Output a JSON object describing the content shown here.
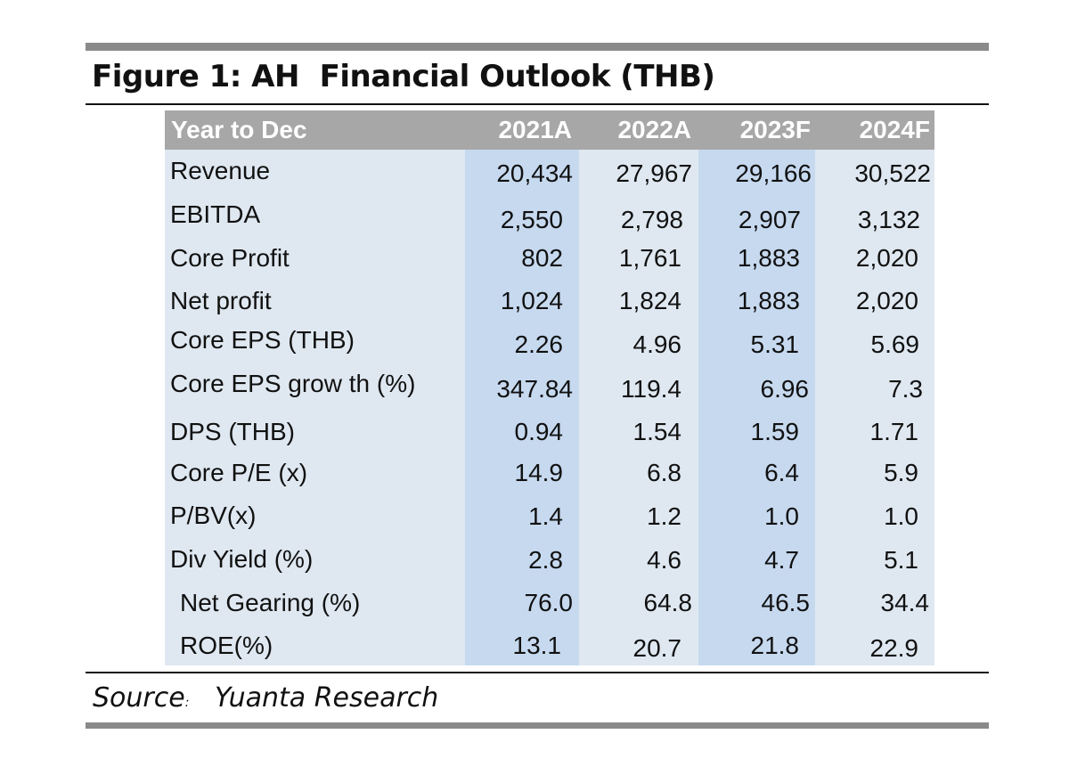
{
  "figure": {
    "title": "Figure 1: AH  Financial Outlook (THB)"
  },
  "table": {
    "header_label": "Year to Dec",
    "columns": [
      "2021A",
      "2022A",
      "2023F",
      "2024F"
    ],
    "rows": [
      {
        "label": "Revenue",
        "values": [
          "20,434",
          "27,967",
          "29,166",
          "30,522"
        ]
      },
      {
        "label": "EBITDA",
        "values": [
          "2,550",
          "2,798",
          "2,907",
          "3,132"
        ]
      },
      {
        "label": "Core Profit",
        "values": [
          "802",
          "1,761",
          "1,883",
          "2,020"
        ]
      },
      {
        "label": "Net profit",
        "values": [
          "1,024",
          "1,824",
          "1,883",
          "2,020"
        ]
      },
      {
        "label": "Core EPS (THB)",
        "values": [
          "2.26",
          "4.96",
          "5.31",
          "5.69"
        ]
      },
      {
        "label": "Core EPS grow th (%)",
        "values": [
          "347.84",
          "119.4",
          "6.96",
          "7.3"
        ]
      },
      {
        "label": "DPS (THB)",
        "values": [
          "0.94",
          "1.54",
          "1.59",
          "1.71"
        ]
      },
      {
        "label": "Core P/E (x)",
        "values": [
          "14.9",
          "6.8",
          "6.4",
          "5.9"
        ]
      },
      {
        "label": "P/BV(x)",
        "values": [
          "1.4",
          "1.2",
          "1.0",
          "1.0"
        ]
      },
      {
        "label": "Div Yield (%)",
        "values": [
          "2.8",
          "4.6",
          "4.7",
          "5.1"
        ]
      },
      {
        "label": "Net Gearing (%)",
        "values": [
          "76.0",
          "64.8",
          "46.5",
          "34.4"
        ]
      },
      {
        "label": "ROE(%)",
        "values": [
          "13.1",
          "20.7",
          "21.8",
          "22.9"
        ]
      }
    ]
  },
  "source": {
    "label": "Source",
    "separator": ":",
    "text": "Yuanta Research"
  },
  "colors": {
    "header_bg": "#a7a7a7",
    "table_bg": "#dfe8f1",
    "column_highlight": "#c6d9ef",
    "rule_gray": "#8a8a8a"
  }
}
